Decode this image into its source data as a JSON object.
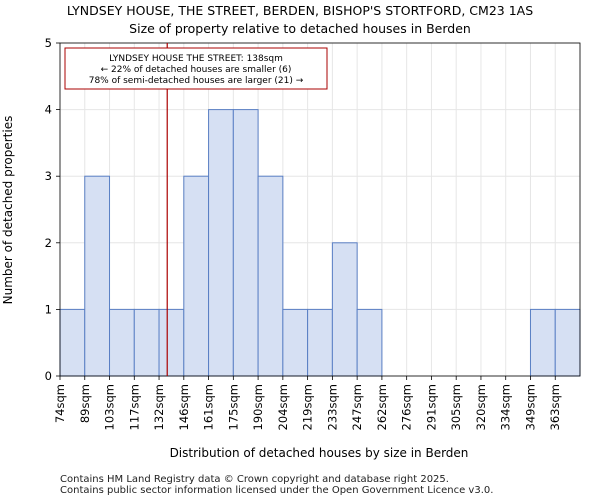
{
  "chart_data": {
    "type": "bar",
    "title": "LYNDSEY HOUSE, THE STREET, BERDEN, BISHOP'S STORTFORD, CM23 1AS",
    "subtitle": "Size of property relative to detached houses in Berden",
    "xlabel": "Distribution of detached houses by size in Berden",
    "ylabel": "Number of detached properties",
    "categories": [
      "74sqm",
      "89sqm",
      "103sqm",
      "117sqm",
      "132sqm",
      "146sqm",
      "161sqm",
      "175sqm",
      "190sqm",
      "204sqm",
      "219sqm",
      "233sqm",
      "247sqm",
      "262sqm",
      "276sqm",
      "291sqm",
      "305sqm",
      "320sqm",
      "334sqm",
      "349sqm",
      "363sqm"
    ],
    "values": [
      1,
      3,
      1,
      1,
      1,
      3,
      4,
      4,
      3,
      1,
      1,
      2,
      1,
      0,
      0,
      0,
      0,
      0,
      0,
      1,
      1
    ],
    "ylim": [
      0,
      5
    ],
    "yticks": [
      0,
      1,
      2,
      3,
      4,
      5
    ],
    "grid": true,
    "bar_fill": "#d6e0f3",
    "bar_stroke": "#5a7fc4",
    "marker": {
      "bin_position": 4.33,
      "color": "#aa0000",
      "lines": [
        "LYNDSEY HOUSE THE STREET: 138sqm",
        "← 22% of detached houses are smaller (6)",
        "78% of semi-detached houses are larger (21) →"
      ]
    }
  },
  "footer": {
    "line1": "Contains HM Land Registry data © Crown copyright and database right 2025.",
    "line2": "Contains public sector information licensed under the Open Government Licence v3.0."
  }
}
